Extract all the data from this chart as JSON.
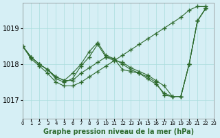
{
  "xlabel": "Graphe pression niveau de la mer (hPa)",
  "ylabel": "",
  "background_color": "#d6eff5",
  "grid_color": "#aadddd",
  "line_color": "#2d6a2d",
  "xlim": [
    0,
    23
  ],
  "ylim": [
    1016.5,
    1019.7
  ],
  "yticks": [
    1017,
    1018,
    1019
  ],
  "xticks": [
    0,
    1,
    2,
    3,
    4,
    5,
    6,
    7,
    8,
    9,
    10,
    11,
    12,
    13,
    14,
    15,
    16,
    17,
    18,
    19,
    20,
    21,
    22,
    23
  ],
  "series": [
    [
      1018.5,
      1018.2,
      1018.0,
      1017.85,
      1017.65,
      1017.55,
      1017.55,
      1017.75,
      1017.9,
      1018.05,
      1018.2,
      1018.1,
      1018.05,
      1017.9,
      1017.8,
      1017.7,
      1017.55,
      1017.4,
      1017.1,
      1017.1,
      1018.0,
      1019.2,
      1019.55
    ],
    [
      1018.5,
      1018.2,
      1018.0,
      1017.85,
      1017.65,
      1017.55,
      1017.75,
      1018.0,
      1018.35,
      1018.6,
      1018.25,
      1018.15,
      1018.0,
      1017.85,
      1017.75,
      1017.65,
      1017.5,
      1017.15,
      1017.1,
      1017.1,
      1018.0,
      1019.2,
      1019.55
    ],
    [
      1018.5,
      1018.2,
      1018.0,
      1017.85,
      1017.6,
      1017.5,
      1017.6,
      1017.95,
      1018.2,
      1018.55,
      1018.2,
      1018.15,
      1017.85,
      1017.8,
      1017.75,
      1017.6,
      1017.45,
      1017.2,
      1017.1,
      1017.1,
      1018.0,
      1019.2,
      1019.55
    ],
    [
      1018.5,
      1018.15,
      1017.95,
      1017.75,
      1017.5,
      1017.4,
      1017.4,
      1017.5,
      1017.65,
      1017.8,
      1017.95,
      1018.1,
      1018.25,
      1018.4,
      1018.55,
      1018.7,
      1018.85,
      1019.0,
      1019.15,
      1019.3,
      1019.5,
      1019.6,
      1019.6
    ]
  ]
}
